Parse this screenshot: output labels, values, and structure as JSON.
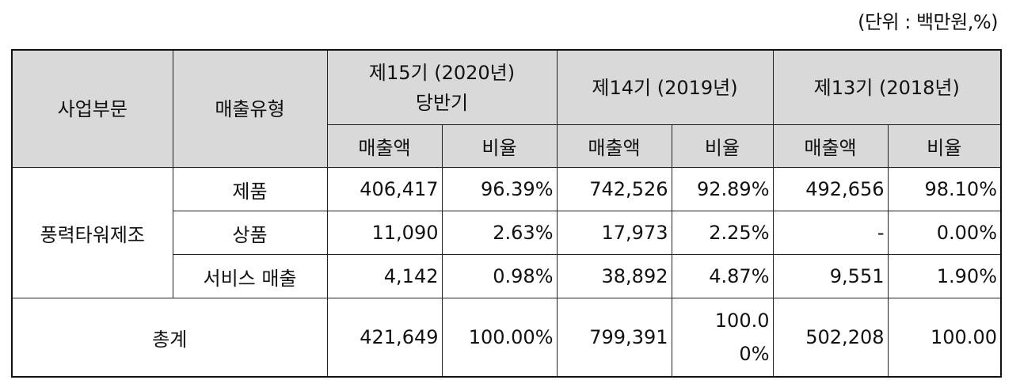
{
  "unit_note": "(단위 : 백만원,%)",
  "headers": {
    "segment": "사업부문",
    "sales_type": "매출유형",
    "period1_line1": "제15기 (2020년)",
    "period1_line2": "당반기",
    "period2": "제14기 (2019년)",
    "period3": "제13기 (2018년)",
    "sales": "매출액",
    "ratio": "비율"
  },
  "segment_name": "풍력타워제조",
  "rows": [
    {
      "type": "제품",
      "p1_sales": "406,417",
      "p1_ratio": "96.39%",
      "p2_sales": "742,526",
      "p2_ratio": "92.89%",
      "p3_sales": "492,656",
      "p3_ratio": "98.10%"
    },
    {
      "type": "상품",
      "p1_sales": "11,090",
      "p1_ratio": "2.63%",
      "p2_sales": "17,973",
      "p2_ratio": "2.25%",
      "p3_sales": "-",
      "p3_ratio": "0.00%"
    },
    {
      "type": "서비스 매출",
      "p1_sales": "4,142",
      "p1_ratio": "0.98%",
      "p2_sales": "38,892",
      "p2_ratio": "4.87%",
      "p3_sales": "9,551",
      "p3_ratio": "1.90%"
    }
  ],
  "total": {
    "label": "총계",
    "p1_sales": "421,649",
    "p1_ratio": "100.00%",
    "p2_sales": "799,391",
    "p2_ratio_line1": "100.0",
    "p2_ratio_line2": "0%",
    "p3_sales": "502,208",
    "p3_ratio": "100.00"
  }
}
